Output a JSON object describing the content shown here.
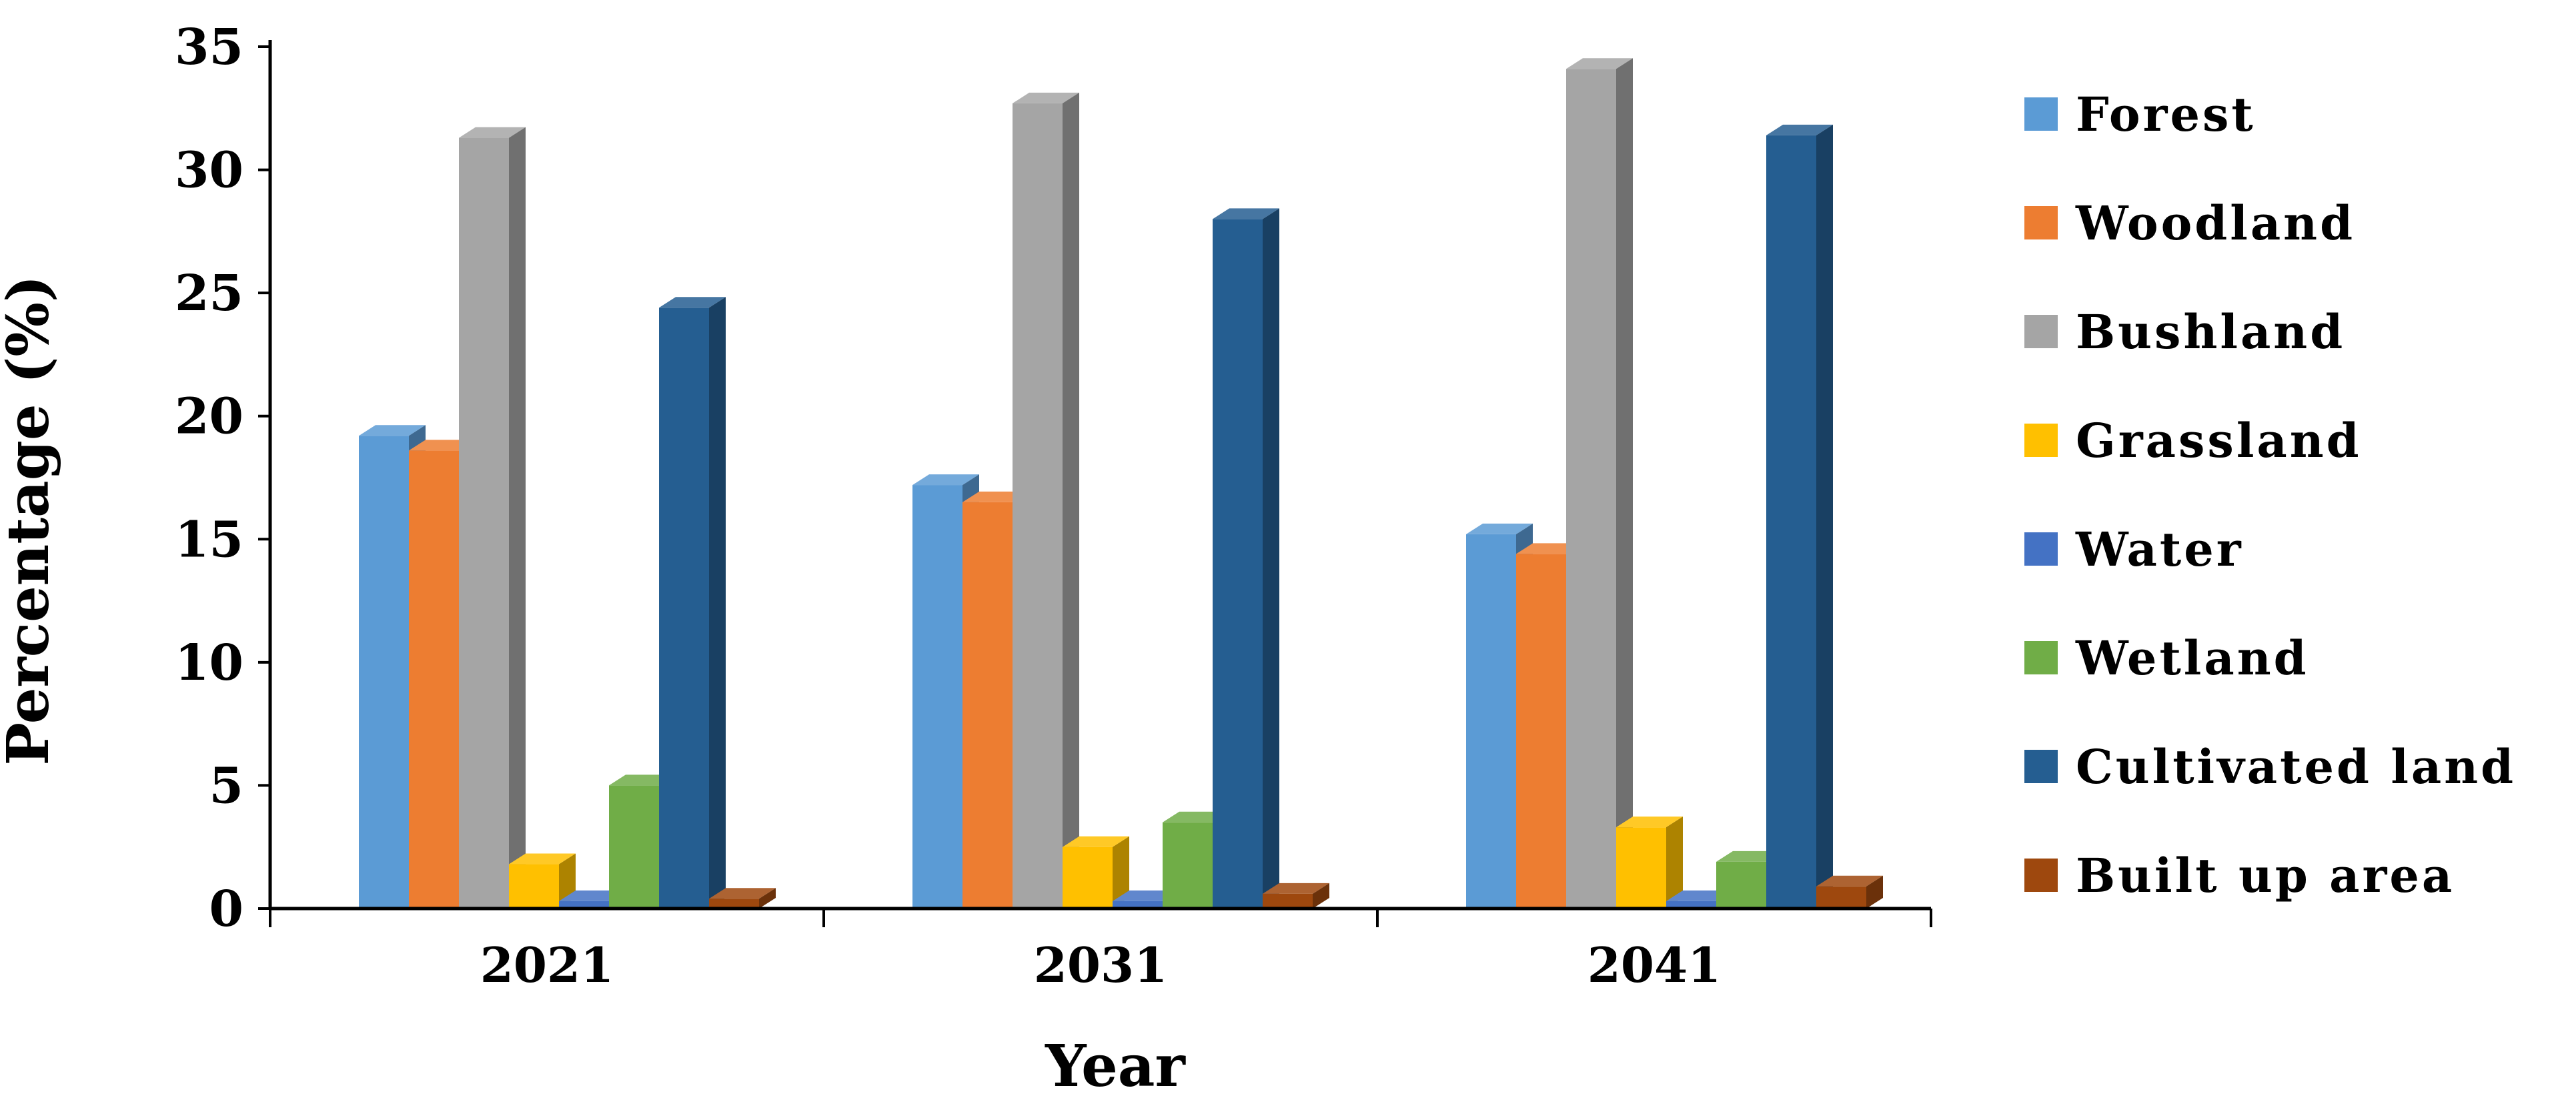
{
  "chart_data": {
    "type": "bar",
    "title": "",
    "xlabel": "Year",
    "ylabel": "Percentage (%)",
    "ylim": [
      0,
      35
    ],
    "yticks": [
      0,
      5,
      10,
      15,
      20,
      25,
      30,
      35
    ],
    "grid": false,
    "legend_position": "right",
    "categories": [
      "2021",
      "2031",
      "2041"
    ],
    "series": [
      {
        "name": "Forest",
        "color": "#5B9BD5",
        "values": [
          19.2,
          17.2,
          15.2
        ]
      },
      {
        "name": "Woodland",
        "color": "#ED7D31",
        "values": [
          18.6,
          16.5,
          14.4
        ]
      },
      {
        "name": "Bushland",
        "color": "#A5A5A5",
        "values": [
          31.3,
          32.7,
          34.1
        ]
      },
      {
        "name": "Grassland",
        "color": "#FFC000",
        "values": [
          1.8,
          2.5,
          3.3
        ]
      },
      {
        "name": "Water",
        "color": "#4472C4",
        "values": [
          0.3,
          0.3,
          0.3
        ]
      },
      {
        "name": "Wetland",
        "color": "#70AD47",
        "values": [
          5.0,
          3.5,
          1.9
        ]
      },
      {
        "name": "Cultivated land",
        "color": "#255E91",
        "values": [
          24.4,
          28.0,
          31.4
        ]
      },
      {
        "name": "Built up area",
        "color": "#9E480E",
        "values": [
          0.4,
          0.6,
          0.9
        ]
      }
    ]
  }
}
